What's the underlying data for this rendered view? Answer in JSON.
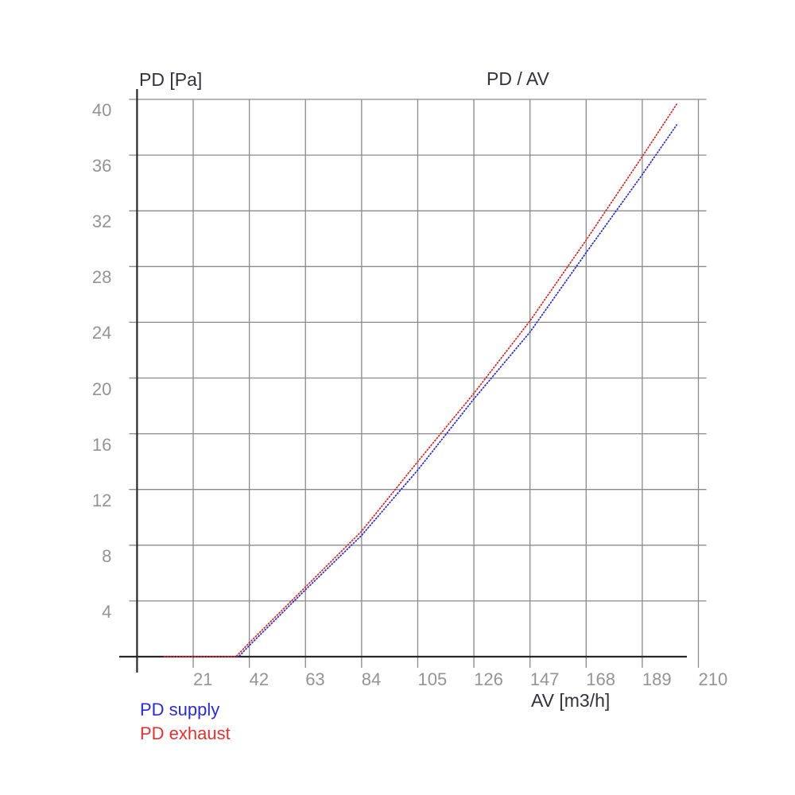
{
  "chart_data": {
    "type": "line",
    "title": "PD / AV",
    "y_axis_label": "PD [Pa]",
    "x_axis_label": "AV [m3/h]",
    "xlim": [
      0,
      210
    ],
    "ylim": [
      0,
      40
    ],
    "x_ticks": [
      21,
      42,
      63,
      84,
      105,
      126,
      147,
      168,
      189,
      210
    ],
    "y_ticks": [
      4,
      8,
      12,
      16,
      20,
      24,
      28,
      32,
      36,
      40
    ],
    "grid": true,
    "legend_position": "bottom-left",
    "series": [
      {
        "name": "PD supply",
        "color": "#2b2bc8",
        "points": [
          [
            10,
            0
          ],
          [
            38,
            0
          ],
          [
            42,
            0.8
          ],
          [
            63,
            4.8
          ],
          [
            84,
            8.7
          ],
          [
            105,
            13.4
          ],
          [
            126,
            18.5
          ],
          [
            147,
            23.3
          ],
          [
            168,
            29.0
          ],
          [
            189,
            34.6
          ],
          [
            202,
            38.2
          ]
        ]
      },
      {
        "name": "PD exhaust",
        "color": "#cc2a28",
        "points": [
          [
            10,
            0
          ],
          [
            37,
            0
          ],
          [
            42,
            1.0
          ],
          [
            63,
            5.0
          ],
          [
            84,
            9.0
          ],
          [
            105,
            14.0
          ],
          [
            126,
            18.9
          ],
          [
            147,
            24.1
          ],
          [
            168,
            29.9
          ],
          [
            189,
            35.9
          ],
          [
            202,
            39.7
          ]
        ]
      }
    ]
  },
  "colors": {
    "grid": "#8a8a8a",
    "axis": "#282828",
    "tick_label": "#949494",
    "title_text": "#32323c",
    "supply_text": "#2b2bd0",
    "exhaust_text": "#dd3331"
  }
}
